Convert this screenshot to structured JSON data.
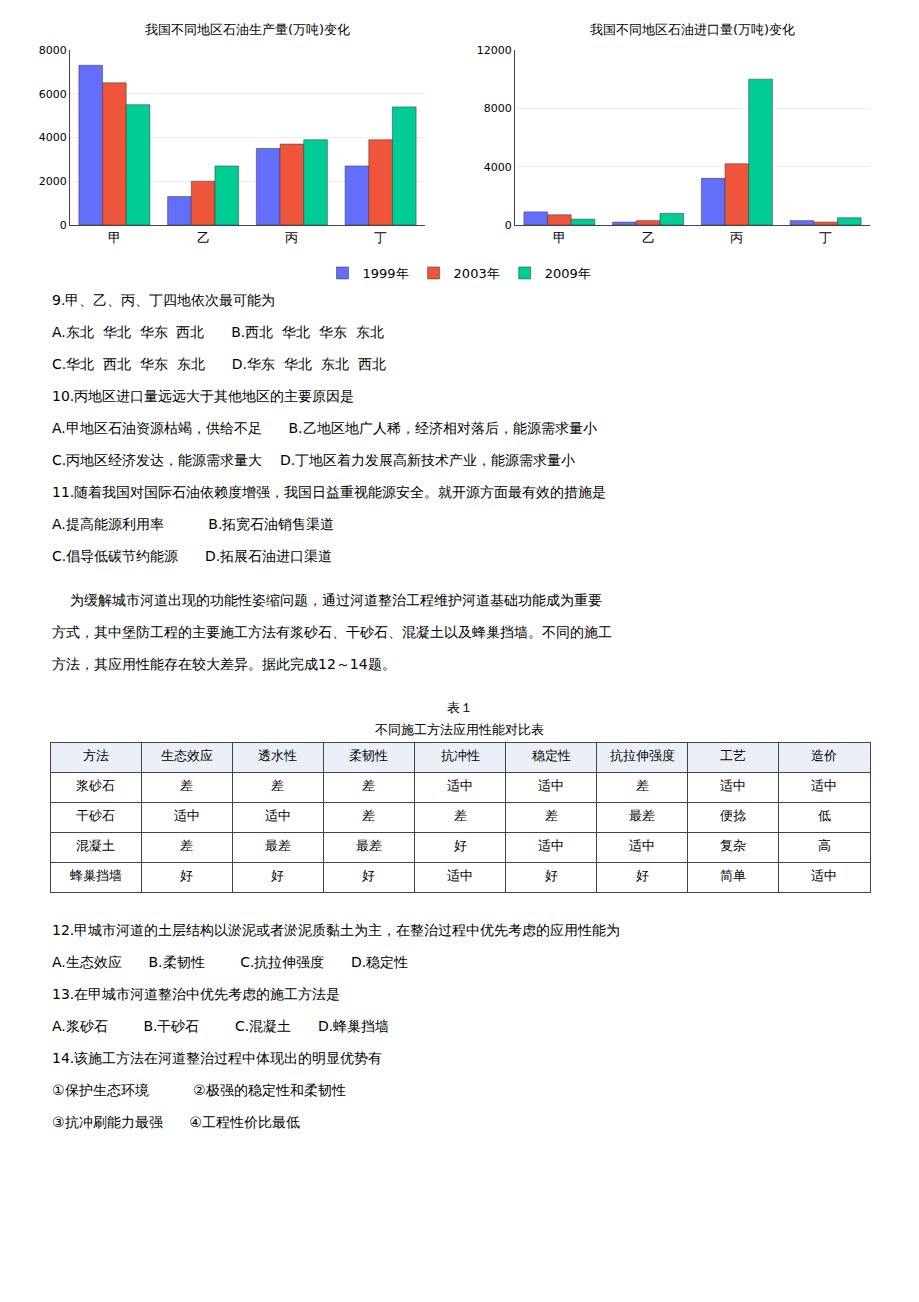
{
  "chart_data": [
    {
      "type": "bar",
      "title": "我国不同地区石油生产量(万吨)变化",
      "categories": [
        "甲",
        "乙",
        "丙",
        "丁"
      ],
      "series": [
        {
          "name": "1999年",
          "color": "#636efa",
          "values": [
            7300,
            1300,
            3500,
            2700
          ]
        },
        {
          "name": "2003年",
          "color": "#ef553b",
          "values": [
            6500,
            2000,
            3700,
            3900
          ]
        },
        {
          "name": "2009年",
          "color": "#00cc96",
          "values": [
            5500,
            2700,
            3900,
            5400
          ]
        }
      ],
      "ylim": [
        0,
        8000
      ],
      "yticks": [
        0,
        2000,
        4000,
        6000,
        8000
      ]
    },
    {
      "type": "bar",
      "title": "我国不同地区石油进口量(万吨)变化",
      "categories": [
        "甲",
        "乙",
        "丙",
        "丁"
      ],
      "series": [
        {
          "name": "1999年",
          "color": "#636efa",
          "values": [
            900,
            200,
            3200,
            300
          ]
        },
        {
          "name": "2003年",
          "color": "#ef553b",
          "values": [
            700,
            300,
            4200,
            200
          ]
        },
        {
          "name": "2009年",
          "color": "#00cc96",
          "values": [
            400,
            800,
            10000,
            500
          ]
        }
      ],
      "ylim": [
        0,
        12000
      ],
      "yticks": [
        0,
        4000,
        8000,
        12000
      ]
    },
    {
      "type": "text",
      "lines": [
        "9.甲、乙、丙、丁四地依次最可能为",
        "A.东北  华北  华东  西北      B.西北  华北  华东  东北",
        "C.华北  西北  华东  东北      D.华东  华北  东北  西北",
        "10.丙地区进口量远远大于其他地区的主要原因是",
        "A.甲地区石油资源枯竭，供给不足      B.乙地区地广人稀，经济相对落后，能源需求量小",
        "C.丙地区经济发达，能源需求量大    D.丁地区着力发展高新技术产业，能源需求量小",
        "11.随着我国对国际石油依赖度增强，我国日益重视能源安全。就开源方面最有效的措施是",
        "A.提高能源利用率          B.拓宽石油销售渠道",
        "C.倡导低碳节约能源      D.拓展石油进口渠道"
      ]
    },
    {
      "type": "text",
      "lines": [
        "    为缓解城市河道出现的功能性姿缩问题，通过河道整治工程维护河道基础功能成为重要",
        "方式，其中堡防工程的主要施工方法有浆砂石、干砂石、混凝土以及蜂巢挡墙。不同的施工",
        "方法，其应用性能存在较大差异。据此完成12～14题。"
      ]
    },
    {
      "type": "table",
      "title": "表１",
      "subtitle": "不同施工方法应用性能对比表",
      "header": [
        "方法",
        "生态效应",
        "透水性",
        "柔韧性",
        "抗冲性",
        "稳定性",
        "抗拉伸强度",
        "工艺",
        "造价"
      ],
      "rows": [
        [
          "浆砂石",
          "差",
          "差",
          "差",
          "适中",
          "适中",
          "差",
          "适中",
          "适中"
        ],
        [
          "干砂石",
          "适中",
          "适中",
          "差",
          "差",
          "差",
          "最差",
          "便捻",
          "低"
        ],
        [
          "混凝土",
          "差",
          "最差",
          "最差",
          "好",
          "适中",
          "适中",
          "复杂",
          "高"
        ],
        [
          "蜂巢挡墙",
          "好",
          "好",
          "好",
          "适中",
          "好",
          "好",
          "简单",
          "适中"
        ]
      ]
    },
    {
      "type": "text",
      "lines": [
        "12.甲城市河道的土层结构以淤泥或者淤泥质黏土为主，在整治过程中优先考虑的应用性能为",
        "A.生态效应      B.柔韧性        C.抗拉伸强度      D.稳定性",
        "13.在甲城市河道整治中优先考虑的施工方法是",
        "A.浆砂石        B.干砂石        C.混凝土      D.蜂巢挡墙",
        "14.该施工方法在河道整治过程中体现出的明显优势有",
        "①保护生态环境          ②极强的稳定性和柔韧性",
        "③抗冲刷能力最强      ④工程性价比最低"
      ]
    }
  ]
}
